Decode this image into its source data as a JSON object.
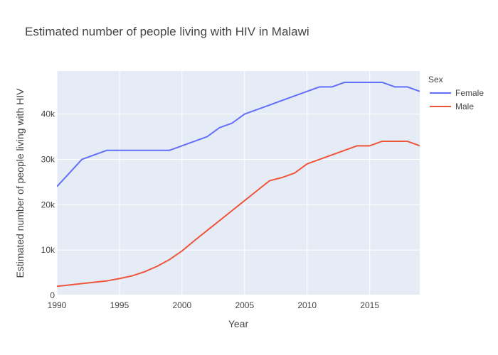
{
  "chart_data": {
    "type": "line",
    "title": "Estimated number of people living with HIV in Malawi",
    "xlabel": "Year",
    "ylabel": "Estimated number of people living with HIV",
    "xlim": [
      1990,
      2019
    ],
    "ylim": [
      0,
      49500
    ],
    "xticks": [
      1990,
      1995,
      2000,
      2005,
      2010,
      2015
    ],
    "xtick_labels": [
      "1990",
      "1995",
      "2000",
      "2005",
      "2010",
      "2015"
    ],
    "yticks": [
      0,
      10000,
      20000,
      30000,
      40000
    ],
    "ytick_labels": [
      "0",
      "10k",
      "20k",
      "30k",
      "40k"
    ],
    "grid": true,
    "legend": {
      "title": "Sex",
      "position": "right"
    },
    "x": [
      1990,
      1991,
      1992,
      1993,
      1994,
      1995,
      1996,
      1997,
      1998,
      1999,
      2000,
      2001,
      2002,
      2003,
      2004,
      2005,
      2006,
      2007,
      2008,
      2009,
      2010,
      2011,
      2012,
      2013,
      2014,
      2015,
      2016,
      2017,
      2018,
      2019
    ],
    "series": [
      {
        "name": "Female",
        "color": "#636efa",
        "values": [
          24000,
          27000,
          30000,
          31000,
          32000,
          32000,
          32000,
          32000,
          32000,
          32000,
          33000,
          34000,
          35000,
          37000,
          38000,
          40000,
          41000,
          42000,
          43000,
          44000,
          45000,
          46000,
          46000,
          47000,
          47000,
          47000,
          47000,
          46000,
          46000,
          45000
        ]
      },
      {
        "name": "Male",
        "color": "#ef553b",
        "values": [
          2000,
          2300,
          2600,
          2900,
          3200,
          3700,
          4300,
          5200,
          6400,
          7900,
          9800,
          12100,
          14300,
          16500,
          18700,
          20900,
          23100,
          25300,
          26000,
          27000,
          29000,
          30000,
          31000,
          32000,
          33000,
          33000,
          34000,
          34000,
          34000,
          33000
        ]
      }
    ]
  }
}
